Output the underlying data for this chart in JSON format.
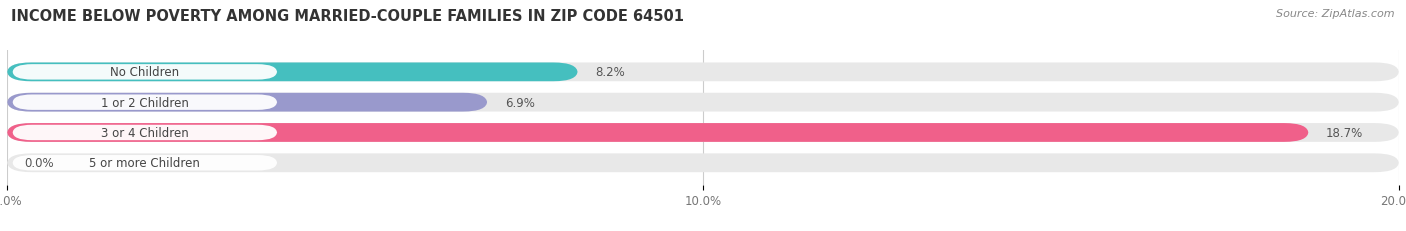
{
  "title": "INCOME BELOW POVERTY AMONG MARRIED-COUPLE FAMILIES IN ZIP CODE 64501",
  "source": "Source: ZipAtlas.com",
  "categories": [
    "No Children",
    "1 or 2 Children",
    "3 or 4 Children",
    "5 or more Children"
  ],
  "values": [
    8.2,
    6.9,
    18.7,
    0.0
  ],
  "bar_colors": [
    "#45bfbf",
    "#9999cc",
    "#f0608a",
    "#f5c8a0"
  ],
  "bar_bg_color": "#e8e8e8",
  "xlim": [
    0,
    20.0
  ],
  "xticks": [
    0.0,
    10.0,
    20.0
  ],
  "xtick_labels": [
    "0.0%",
    "10.0%",
    "20.0%"
  ],
  "title_fontsize": 10.5,
  "source_fontsize": 8,
  "label_fontsize": 8.5,
  "value_fontsize": 8.5,
  "bar_height": 0.62,
  "background_color": "#ffffff",
  "label_text_color": "#444444",
  "value_label_color": "#555555",
  "pill_bg_color": "#ffffff"
}
